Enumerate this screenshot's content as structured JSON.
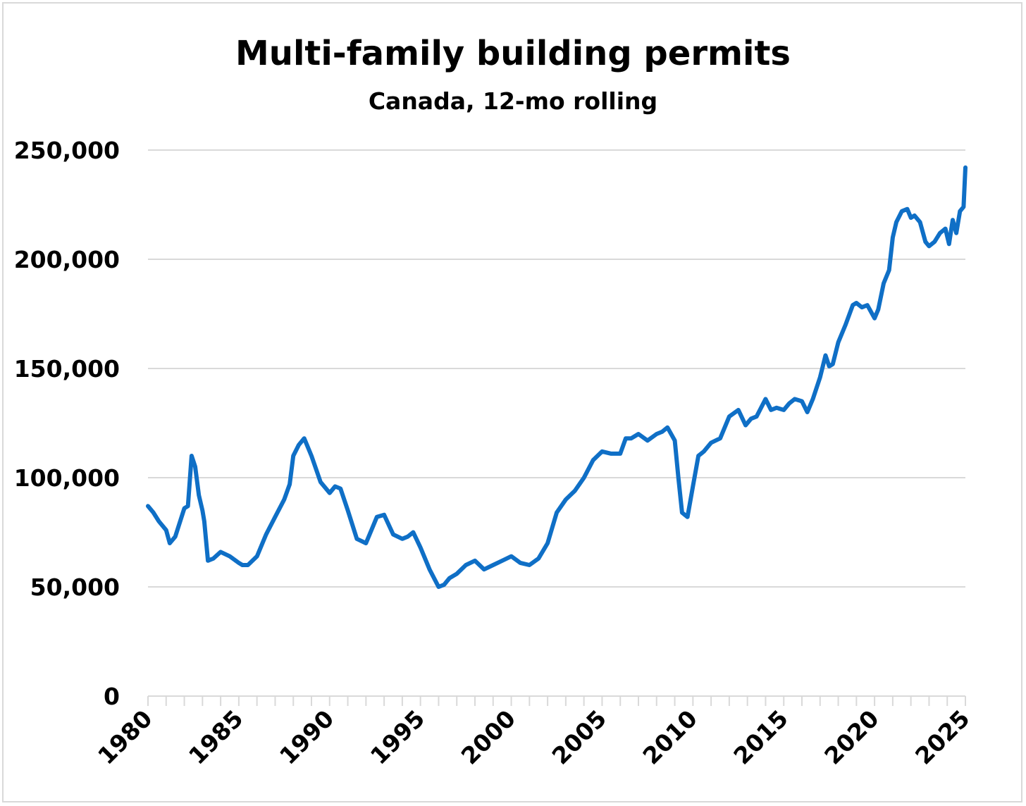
{
  "chart_data": {
    "type": "line",
    "title": "Multi-family building permits",
    "subtitle": "Canada, 12-mo rolling",
    "xlabel": "",
    "ylabel": "",
    "xlim": [
      1980,
      2025
    ],
    "ylim": [
      0,
      250000
    ],
    "y_ticks": [
      0,
      50000,
      100000,
      150000,
      200000,
      250000
    ],
    "y_tick_labels": [
      "0",
      "50,000",
      "100,000",
      "150,000",
      "200,000",
      "250,000"
    ],
    "x_ticks": [
      1980,
      1985,
      1990,
      1995,
      2000,
      2005,
      2010,
      2015,
      2020,
      2025
    ],
    "x_tick_labels": [
      "1980",
      "1985",
      "1990",
      "1995",
      "2000",
      "2005",
      "2010",
      "2015",
      "2020",
      "2025"
    ],
    "grid": true,
    "line_color": "#0f6fc6",
    "series": [
      {
        "name": "Multi-family building permits",
        "x": [
          1980.0,
          1980.3,
          1980.6,
          1981.0,
          1981.2,
          1981.5,
          1982.0,
          1982.2,
          1982.4,
          1982.6,
          1982.8,
          1983.0,
          1983.1,
          1983.3,
          1983.6,
          1984.0,
          1984.5,
          1985.0,
          1985.2,
          1985.5,
          1986.0,
          1986.5,
          1987.0,
          1987.5,
          1987.8,
          1988.0,
          1988.3,
          1988.6,
          1989.0,
          1989.5,
          1990.0,
          1990.3,
          1990.6,
          1991.0,
          1991.5,
          1992.0,
          1992.3,
          1992.6,
          1993.0,
          1993.5,
          1994.0,
          1994.3,
          1994.6,
          1995.0,
          1995.5,
          1996.0,
          1996.3,
          1996.6,
          1997.0,
          1997.5,
          1998.0,
          1998.5,
          1999.0,
          1999.5,
          2000.0,
          2000.5,
          2001.0,
          2001.5,
          2002.0,
          2002.5,
          2003.0,
          2003.5,
          2004.0,
          2004.5,
          2005.0,
          2005.5,
          2006.0,
          2006.3,
          2006.6,
          2007.0,
          2007.5,
          2008.0,
          2008.3,
          2008.6,
          2009.0,
          2009.2,
          2009.4,
          2009.7,
          2010.0,
          2010.3,
          2010.6,
          2011.0,
          2011.5,
          2012.0,
          2012.5,
          2012.9,
          2013.2,
          2013.5,
          2014.0,
          2014.3,
          2014.6,
          2015.0,
          2015.3,
          2015.6,
          2016.0,
          2016.3,
          2016.6,
          2017.0,
          2017.3,
          2017.5,
          2017.7,
          2018.0,
          2018.4,
          2018.8,
          2019.0,
          2019.3,
          2019.6,
          2020.0,
          2020.2,
          2020.5,
          2020.8,
          2021.0,
          2021.2,
          2021.5,
          2021.8,
          2022.0,
          2022.2,
          2022.5,
          2022.8,
          2023.0,
          2023.3,
          2023.6,
          2023.9,
          2024.1,
          2024.3,
          2024.5,
          2024.7,
          2024.9,
          2025.0
        ],
        "values": [
          87000,
          84000,
          80000,
          76000,
          70000,
          73000,
          86000,
          87000,
          110000,
          105000,
          92000,
          85000,
          80000,
          62000,
          63000,
          66000,
          64000,
          61000,
          60000,
          60000,
          64000,
          74000,
          82000,
          90000,
          97000,
          110000,
          115000,
          118000,
          110000,
          98000,
          93000,
          96000,
          95000,
          85000,
          72000,
          70000,
          76000,
          82000,
          83000,
          74000,
          72000,
          73000,
          75000,
          68000,
          58000,
          50000,
          51000,
          54000,
          56000,
          60000,
          62000,
          58000,
          60000,
          62000,
          64000,
          61000,
          60000,
          63000,
          70000,
          84000,
          90000,
          94000,
          100000,
          108000,
          112000,
          111000,
          111000,
          118000,
          118000,
          120000,
          117000,
          120000,
          121000,
          123000,
          117000,
          100000,
          84000,
          82000,
          96000,
          110000,
          112000,
          116000,
          118000,
          128000,
          131000,
          124000,
          127000,
          128000,
          136000,
          131000,
          132000,
          131000,
          134000,
          136000,
          135000,
          130000,
          136000,
          146000,
          156000,
          151000,
          152000,
          162000,
          170000,
          179000,
          180000,
          178000,
          179000,
          173000,
          177000,
          189000,
          195000,
          210000,
          217000,
          222000,
          223000,
          219000,
          220000,
          217000,
          208000,
          206000,
          208000,
          212000,
          214000,
          207000,
          218000,
          212000,
          222000,
          224000,
          242000
        ]
      }
    ]
  }
}
